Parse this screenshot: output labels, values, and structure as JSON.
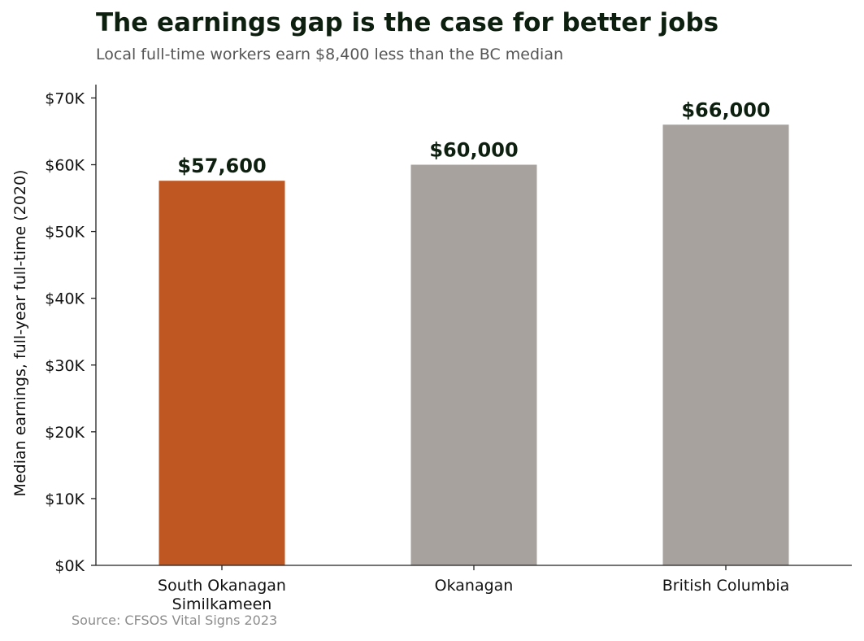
{
  "chart_data": {
    "type": "bar",
    "title": "The earnings gap is the case for better jobs",
    "subtitle": "Local full-time workers earn $8,400 less than the BC median",
    "source": "Source: CFSOS Vital Signs 2023",
    "ylabel": "Median earnings, full-year full-time (2020)",
    "xlabel": "",
    "ylim": [
      0,
      72000
    ],
    "y_ticks": [
      {
        "value": 0,
        "label": "$0K"
      },
      {
        "value": 10000,
        "label": "$10K"
      },
      {
        "value": 20000,
        "label": "$20K"
      },
      {
        "value": 30000,
        "label": "$30K"
      },
      {
        "value": 40000,
        "label": "$40K"
      },
      {
        "value": 50000,
        "label": "$50K"
      },
      {
        "value": 60000,
        "label": "$60K"
      },
      {
        "value": 70000,
        "label": "$70K"
      }
    ],
    "categories": [
      [
        "South Okanagan",
        "Similkameen"
      ],
      [
        "Okanagan"
      ],
      [
        "British Columbia"
      ]
    ],
    "values": [
      57600,
      60000,
      66000
    ],
    "value_labels": [
      "$57,600",
      "$60,000",
      "$66,000"
    ],
    "colors": [
      "#bf5722",
      "#a7a29e",
      "#a7a29e"
    ],
    "grid": false,
    "legend": "none"
  }
}
